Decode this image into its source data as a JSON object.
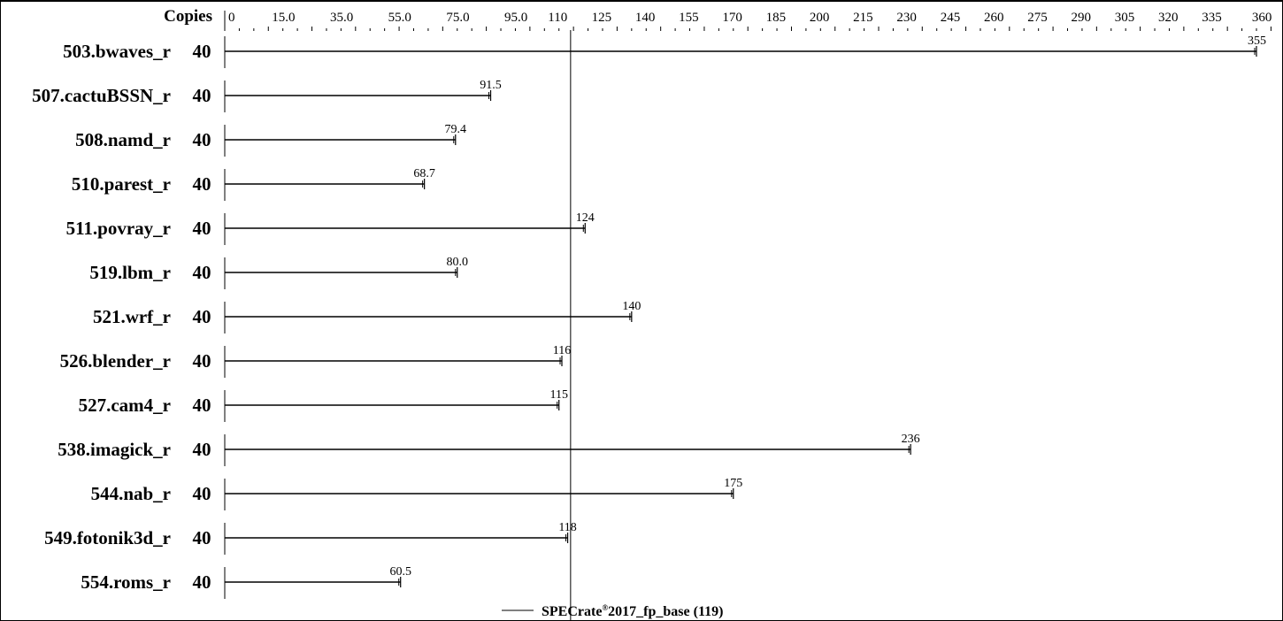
{
  "chart_data": {
    "type": "bar",
    "header": {
      "copies_label": "Copies"
    },
    "x_ticks": [
      "0",
      "15.0",
      "35.0",
      "55.0",
      "75.0",
      "95.0",
      "110",
      "125",
      "140",
      "155",
      "170",
      "185",
      "200",
      "215",
      "230",
      "245",
      "260",
      "275",
      "290",
      "305",
      "320",
      "335",
      "360"
    ],
    "xlim": [
      0,
      360
    ],
    "categories": [
      "503.bwaves_r",
      "507.cactuBSSN_r",
      "508.namd_r",
      "510.parest_r",
      "511.povray_r",
      "519.lbm_r",
      "521.wrf_r",
      "526.blender_r",
      "527.cam4_r",
      "538.imagick_r",
      "544.nab_r",
      "549.fotonik3d_r",
      "554.roms_r"
    ],
    "copies": [
      "40",
      "40",
      "40",
      "40",
      "40",
      "40",
      "40",
      "40",
      "40",
      "40",
      "40",
      "40",
      "40"
    ],
    "values": [
      355,
      91.5,
      79.4,
      68.7,
      124,
      80.0,
      140,
      116,
      115,
      236,
      175,
      118,
      60.5
    ],
    "value_labels": [
      "355",
      "91.5",
      "79.4",
      "68.7",
      "124",
      "80.0",
      "140",
      "116",
      "115",
      "236",
      "175",
      "118",
      "60.5"
    ],
    "reference": {
      "value": 119,
      "label_main": "SPECrate",
      "label_sup": "®",
      "label_rest": "2017_fp_base (119)"
    },
    "grid": false,
    "legend_position": "bottom-center",
    "colors": {
      "line": "#000000",
      "background": "#ffffff"
    }
  }
}
